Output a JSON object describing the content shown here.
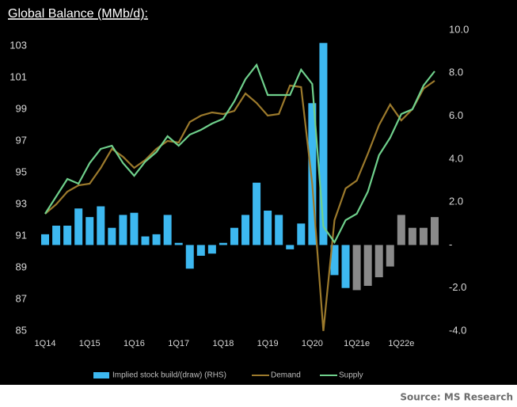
{
  "chart_data": {
    "type": "bar",
    "title": "Global Balance (MMb/d):",
    "source": "Source: MS Research",
    "categories": [
      "1Q14",
      null,
      null,
      null,
      "1Q15",
      null,
      null,
      null,
      "1Q16",
      null,
      null,
      null,
      "1Q17",
      null,
      null,
      null,
      "1Q18",
      null,
      null,
      null,
      "1Q19",
      null,
      null,
      null,
      "1Q20",
      null,
      null,
      null,
      "1Q21e",
      null,
      null,
      null,
      "1Q22e",
      null,
      null,
      null
    ],
    "ylim": [
      85,
      104
    ],
    "yticks": [
      85,
      87,
      89,
      91,
      93,
      95,
      97,
      99,
      101,
      103
    ],
    "y2lim": [
      -4,
      10
    ],
    "y2ticks": [
      {
        "value": -4,
        "label": "-4.0"
      },
      {
        "value": -2,
        "label": "-2.0"
      },
      {
        "value": 0,
        "label": "-"
      },
      {
        "value": 2,
        "label": "2.0"
      },
      {
        "value": 4,
        "label": "4.0"
      },
      {
        "value": 6,
        "label": "6.0"
      },
      {
        "value": 8,
        "label": "8.0"
      },
      {
        "value": 10,
        "label": "10.0"
      }
    ],
    "legend": "bottom",
    "series": [
      {
        "name": "Implied stock build/(draw) (RHS)",
        "type": "bar",
        "axis": "y2",
        "color": "#3db8f0",
        "colors": [
          "#3db8f0",
          "#3db8f0",
          "#3db8f0",
          "#3db8f0",
          "#3db8f0",
          "#3db8f0",
          "#3db8f0",
          "#3db8f0",
          "#3db8f0",
          "#3db8f0",
          "#3db8f0",
          "#3db8f0",
          "#3db8f0",
          "#3db8f0",
          "#3db8f0",
          "#3db8f0",
          "#3db8f0",
          "#3db8f0",
          "#3db8f0",
          "#3db8f0",
          "#3db8f0",
          "#3db8f0",
          "#3db8f0",
          "#3db8f0",
          "#3db8f0",
          "#3db8f0",
          "#3db8f0",
          "#3db8f0",
          "#8a8a8a",
          "#8a8a8a",
          "#8a8a8a",
          "#8a8a8a",
          "#8a8a8a",
          "#8a8a8a",
          "#8a8a8a",
          "#8a8a8a"
        ],
        "values": [
          0.5,
          0.9,
          0.9,
          1.7,
          1.3,
          1.8,
          0.8,
          1.4,
          1.5,
          0.4,
          0.5,
          1.4,
          0.1,
          -1.1,
          -0.5,
          -0.4,
          0.1,
          0.8,
          1.4,
          2.9,
          1.6,
          1.4,
          -0.2,
          1.0,
          6.6,
          9.4,
          -1.4,
          -2.0,
          -2.1,
          -1.9,
          -1.5,
          -1.0,
          1.4,
          0.8,
          0.8,
          1.3
        ]
      },
      {
        "name": "Demand",
        "type": "line",
        "color": "#9c7a2c",
        "values": [
          92.4,
          93.0,
          93.8,
          94.2,
          94.3,
          95.3,
          96.5,
          96.0,
          95.3,
          95.8,
          96.5,
          97.0,
          96.9,
          98.2,
          98.6,
          98.8,
          98.7,
          98.9,
          100.0,
          99.4,
          98.6,
          98.7,
          100.5,
          100.4,
          94.3,
          85.0,
          92.0,
          94.0,
          94.5,
          96.2,
          98.0,
          99.3,
          98.3,
          99.0,
          100.3,
          100.8
        ]
      },
      {
        "name": "Supply",
        "type": "line",
        "color": "#6fd08c",
        "values": [
          92.4,
          93.5,
          94.6,
          94.3,
          95.6,
          96.5,
          96.7,
          95.6,
          94.8,
          95.7,
          96.3,
          97.3,
          96.7,
          97.4,
          97.7,
          98.1,
          98.4,
          99.5,
          100.9,
          101.8,
          99.9,
          99.9,
          99.9,
          101.5,
          100.6,
          91.6,
          90.6,
          92.0,
          92.4,
          93.8,
          96.1,
          97.2,
          98.7,
          99.0,
          100.5,
          101.4
        ]
      }
    ]
  }
}
